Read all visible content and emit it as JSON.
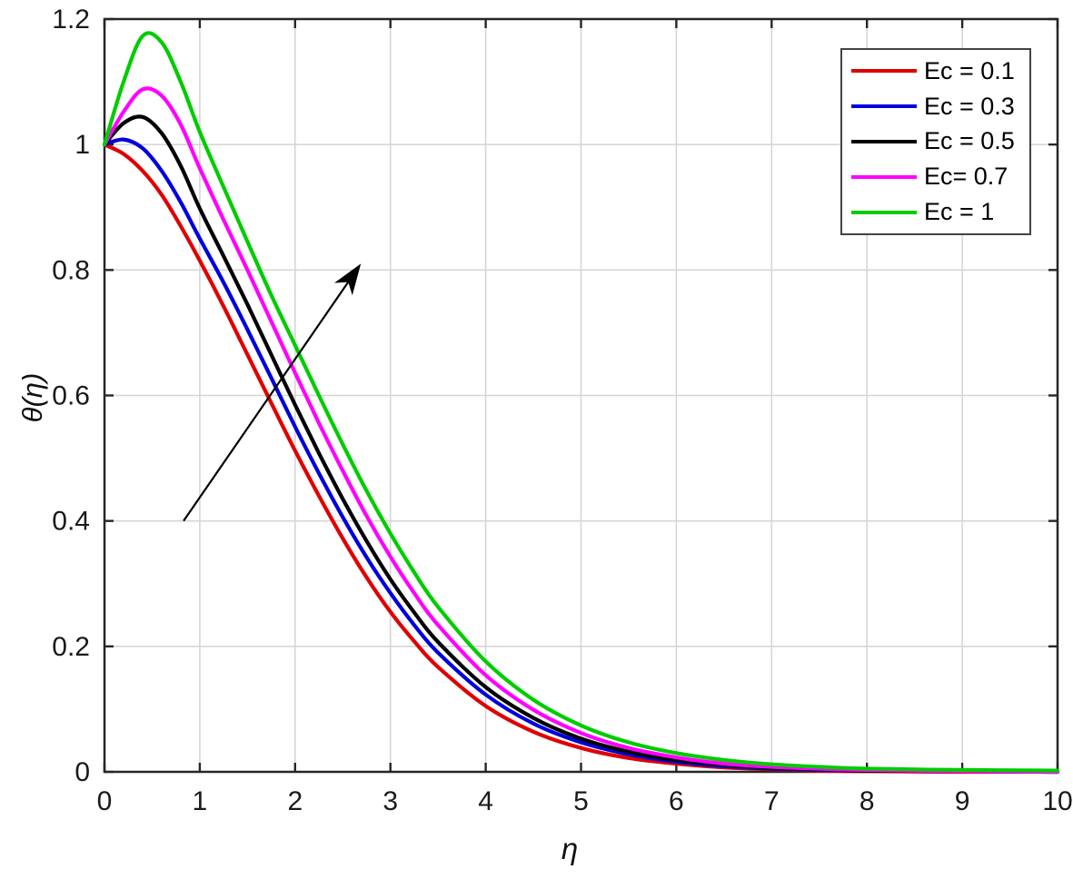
{
  "figure": {
    "title": "",
    "background_color": "#ffffff"
  },
  "chart_data": {
    "type": "line",
    "title": "",
    "xlabel": "η",
    "ylabel": "θ(η)",
    "xlim": [
      0,
      10
    ],
    "ylim": [
      0,
      1.2
    ],
    "xticks": [
      0,
      1,
      2,
      3,
      4,
      5,
      6,
      7,
      8,
      9,
      10
    ],
    "xtick_labels": [
      "0",
      "1",
      "2",
      "3",
      "4",
      "5",
      "6",
      "7",
      "8",
      "9",
      "10"
    ],
    "yticks": [
      0,
      0.2,
      0.4,
      0.6,
      0.8,
      1,
      1.2
    ],
    "ytick_labels": [
      "0",
      "0.2",
      "0.4",
      "0.6",
      "0.8",
      "1",
      "1.2"
    ],
    "grid": true,
    "grid_color": "#d6d6d6",
    "axis_color": "#262626",
    "legend_position": "top-right",
    "x": [
      0,
      0.2,
      0.4,
      0.6,
      0.8,
      1,
      1.25,
      1.5,
      1.75,
      2,
      2.25,
      2.5,
      2.75,
      3,
      3.25,
      3.5,
      4,
      4.5,
      5,
      5.5,
      6,
      6.5,
      7,
      7.5,
      8,
      9,
      10
    ],
    "series": [
      {
        "label": "Ec = 0.1",
        "color": "#e00000",
        "values": [
          1.0,
          0.985,
          0.958,
          0.92,
          0.87,
          0.815,
          0.742,
          0.665,
          0.588,
          0.512,
          0.44,
          0.372,
          0.31,
          0.255,
          0.208,
          0.167,
          0.105,
          0.064,
          0.038,
          0.022,
          0.013,
          0.007,
          0.004,
          0.002,
          0.001,
          0.0,
          0.0
        ]
      },
      {
        "label": "Ec = 0.3",
        "color": "#0000dd",
        "values": [
          1.0,
          1.008,
          0.994,
          0.958,
          0.908,
          0.85,
          0.78,
          0.705,
          0.628,
          0.55,
          0.476,
          0.406,
          0.342,
          0.285,
          0.234,
          0.19,
          0.123,
          0.077,
          0.047,
          0.028,
          0.016,
          0.009,
          0.005,
          0.003,
          0.002,
          0.001,
          0.0
        ]
      },
      {
        "label": "Ec = 0.5",
        "color": "#000000",
        "values": [
          1.0,
          1.034,
          1.044,
          1.018,
          0.966,
          0.898,
          0.822,
          0.745,
          0.665,
          0.585,
          0.508,
          0.435,
          0.368,
          0.307,
          0.254,
          0.207,
          0.135,
          0.086,
          0.053,
          0.032,
          0.019,
          0.011,
          0.006,
          0.004,
          0.002,
          0.001,
          0.0
        ]
      },
      {
        "label": "Ec= 0.7",
        "color": "#ff00ff",
        "values": [
          1.0,
          1.052,
          1.088,
          1.078,
          1.032,
          0.962,
          0.88,
          0.8,
          0.718,
          0.636,
          0.556,
          0.48,
          0.408,
          0.343,
          0.285,
          0.234,
          0.154,
          0.099,
          0.062,
          0.038,
          0.023,
          0.013,
          0.008,
          0.005,
          0.003,
          0.001,
          0.0
        ]
      },
      {
        "label": "Ec = 1",
        "color": "#00cc00",
        "values": [
          1.0,
          1.1,
          1.173,
          1.163,
          1.1,
          1.02,
          0.932,
          0.845,
          0.76,
          0.68,
          0.6,
          0.522,
          0.448,
          0.38,
          0.318,
          0.263,
          0.176,
          0.115,
          0.074,
          0.047,
          0.03,
          0.019,
          0.012,
          0.008,
          0.005,
          0.003,
          0.002
        ]
      }
    ],
    "annotation_arrow": {
      "from_xy": [
        0.83,
        0.4
      ],
      "to_xy": [
        2.69,
        0.81
      ],
      "color": "#000000"
    }
  }
}
